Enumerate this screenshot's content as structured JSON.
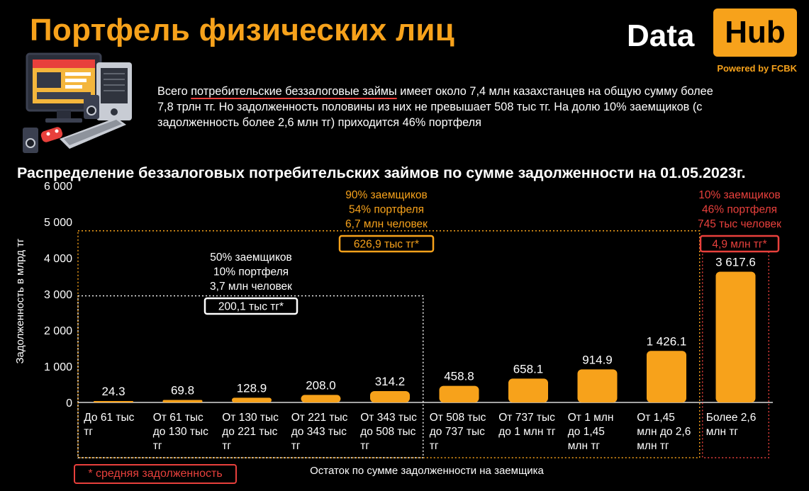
{
  "header": {
    "title": "Портфель физических лиц",
    "logo_data": "Data",
    "logo_hub": "Hub",
    "logo_powered": "Powered by FCBK"
  },
  "intro": {
    "before": "Всего ",
    "highlight": "потребительские беззалоговые займы",
    "after": " имеет около 7,4 млн казахстанцев на общую сумму более 7,8 трлн тг. Но задолженность половины из них не превышает 508 тыс тг. На долю 10% заемщиков (с задолженность более 2,6 млн тг) приходится 46% портфеля"
  },
  "colors": {
    "accent": "#f7a21b",
    "red": "#e8403c",
    "background": "#000000",
    "text": "#ffffff"
  },
  "chart_data": {
    "type": "bar",
    "title": "Распределение беззалоговых потребительских займов по сумме задолженности на 01.05.2023г.",
    "ylabel": "Задолженность в млрд тг",
    "xlabel": "Остаток по сумме задолженности на заемщика",
    "ylim": [
      0,
      6000
    ],
    "y_ticks": [
      0,
      1000,
      2000,
      3000,
      4000,
      5000,
      6000
    ],
    "y_tick_labels": [
      "0",
      "1 000",
      "2 000",
      "3 000",
      "4 000",
      "5 000",
      "6 000"
    ],
    "categories": [
      [
        "До 61 тыс",
        "тг"
      ],
      [
        "От 61 тыс",
        "до 130 тыс",
        "тг"
      ],
      [
        "От 130 тыс",
        "до 221 тыс",
        "тг"
      ],
      [
        "От 221 тыс",
        "до 343 тыс",
        "тг"
      ],
      [
        "От 343 тыс",
        "до 508 тыс",
        "тг"
      ],
      [
        "От 508 тыс",
        "до 737 тыс",
        "тг"
      ],
      [
        "От 737 тыс",
        "до 1 млн тг"
      ],
      [
        "От 1 млн",
        "до 1,45",
        "млн тг"
      ],
      [
        "От 1,45",
        "млн до 2,6",
        "млн тг"
      ],
      [
        "Более 2,6",
        "млн тг"
      ]
    ],
    "values": [
      24.3,
      69.8,
      128.9,
      208.0,
      314.2,
      458.8,
      658.1,
      914.9,
      1426.1,
      3617.6
    ],
    "value_labels": [
      "24.3",
      "69.8",
      "128.9",
      "208.0",
      "314.2",
      "458.8",
      "658.1",
      "914.9",
      "1 426.1",
      "3 617.6"
    ],
    "annotations": [
      {
        "lines": [
          "50% заемщиков",
          "10% портфеля",
          "3,7 млн человек"
        ],
        "badge": "200,1 тыс тг*",
        "color": "#ffffff",
        "from_category": 0,
        "to_category": 4,
        "level": 2950
      },
      {
        "lines": [
          "90% заемщиков",
          "54% портфеля",
          "6,7 млн человек"
        ],
        "badge": "626,9 тыс тг*",
        "color": "#f7a21b",
        "from_category": 0,
        "to_category": 8,
        "level": 4750
      },
      {
        "lines": [
          "10% заемщиков",
          "46% портфеля",
          "745 тыс человек"
        ],
        "badge": "4,9 млн тг*",
        "color": "#e8403c",
        "from_category": 9,
        "to_category": 9,
        "level": 4400
      }
    ],
    "grid": false,
    "legend": "none"
  },
  "footnote": "* средняя задолженность"
}
